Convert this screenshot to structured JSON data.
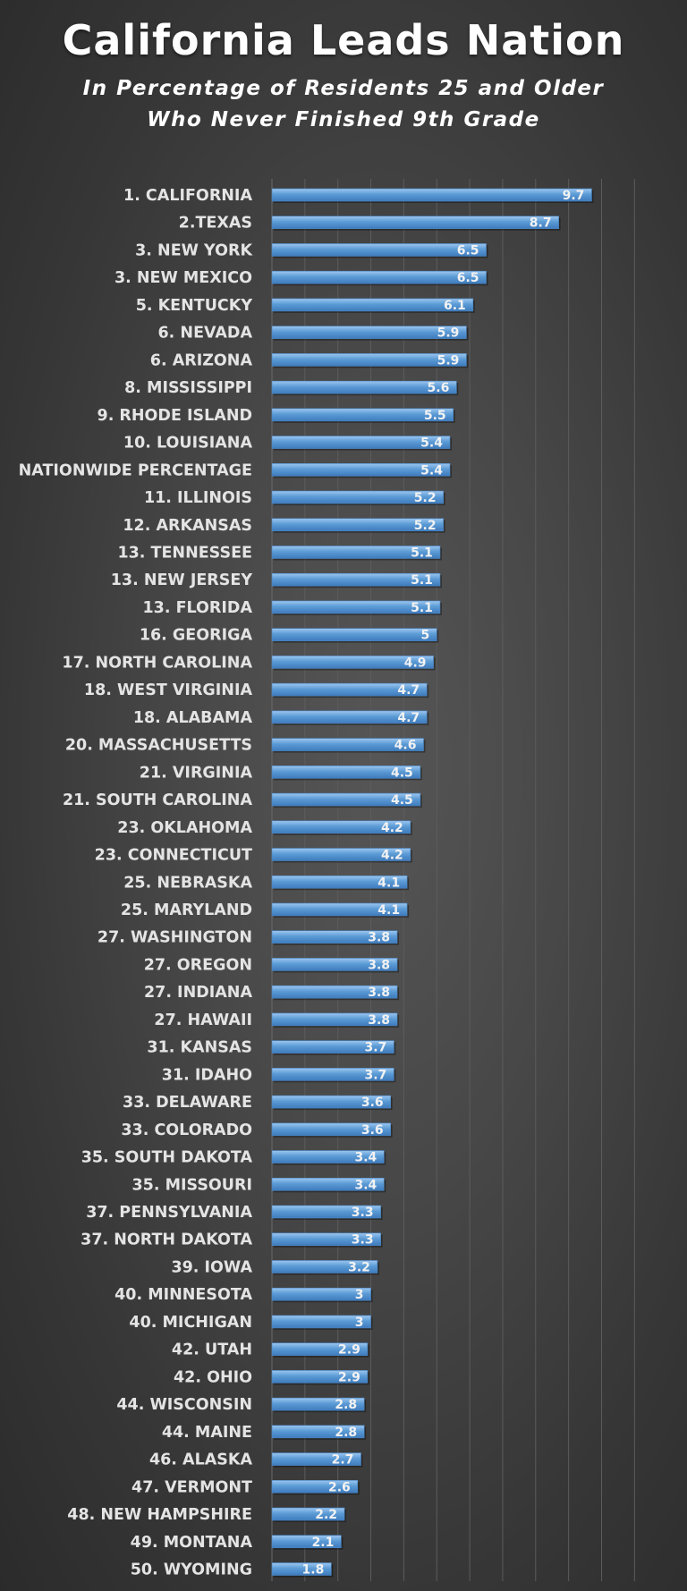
{
  "chart_data": {
    "type": "bar",
    "orientation": "horizontal",
    "title": "California Leads Nation",
    "subtitle": [
      "In Percentage of Residents 25 and Older",
      "Who Never Finished 9th Grade"
    ],
    "xlim": [
      0,
      11
    ],
    "grid": true,
    "bar_color": "#5b9bd5",
    "categories": [
      "1. CALIFORNIA",
      "2.TEXAS",
      "3. NEW YORK",
      "3. NEW MEXICO",
      "5. KENTUCKY",
      "6. NEVADA",
      "6. ARIZONA",
      "8. MISSISSIPPI",
      "9. RHODE ISLAND",
      "10. LOUISIANA",
      "NATIONWIDE PERCENTAGE",
      "11. ILLINOIS",
      "12. ARKANSAS",
      "13. TENNESSEE",
      "13. NEW JERSEY",
      "13. FLORIDA",
      "16. GEORIGA",
      "17. NORTH CAROLINA",
      "18. WEST VIRGINIA",
      "18. ALABAMA",
      "20. MASSACHUSETTS",
      "21. VIRGINIA",
      "21. SOUTH CAROLINA",
      "23. OKLAHOMA",
      "23. CONNECTICUT",
      "25. NEBRASKA",
      "25. MARYLAND",
      "27. WASHINGTON",
      "27. OREGON",
      "27. INDIANA",
      "27. HAWAII",
      "31. KANSAS",
      "31. IDAHO",
      "33. DELAWARE",
      "33. COLORADO",
      "35. SOUTH DAKOTA",
      "35. MISSOURI",
      "37. PENNSYLVANIA",
      "37. NORTH DAKOTA",
      "39. IOWA",
      "40. MINNESOTA",
      "40. MICHIGAN",
      "42. UTAH",
      "42. OHIO",
      "44. WISCONSIN",
      "44. MAINE",
      "46. ALASKA",
      "47. VERMONT",
      "48. NEW HAMPSHIRE",
      "49. MONTANA",
      "50. WYOMING"
    ],
    "values": [
      9.7,
      8.7,
      6.5,
      6.5,
      6.1,
      5.9,
      5.9,
      5.6,
      5.5,
      5.4,
      5.4,
      5.2,
      5.2,
      5.1,
      5.1,
      5.1,
      5,
      4.9,
      4.7,
      4.7,
      4.6,
      4.5,
      4.5,
      4.2,
      4.2,
      4.1,
      4.1,
      3.8,
      3.8,
      3.8,
      3.8,
      3.7,
      3.7,
      3.6,
      3.6,
      3.4,
      3.4,
      3.3,
      3.3,
      3.2,
      3,
      3,
      2.9,
      2.9,
      2.8,
      2.8,
      2.7,
      2.6,
      2.2,
      2.1,
      1.8
    ]
  }
}
